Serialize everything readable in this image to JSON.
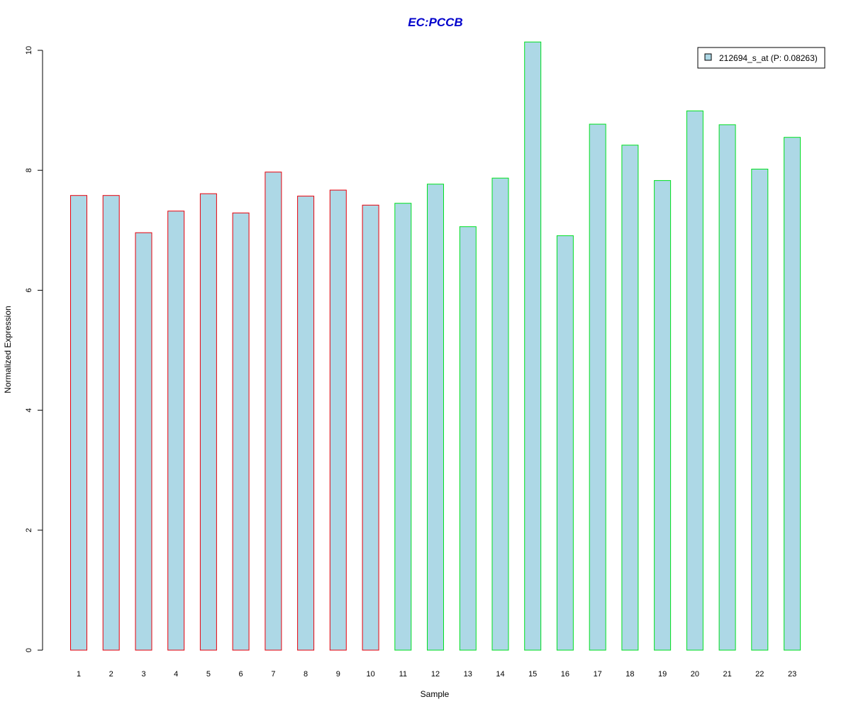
{
  "chart_data": {
    "type": "bar",
    "title": "EC:PCCB",
    "xlabel": "Sample",
    "ylabel": "Normalized Expression",
    "categories": [
      "1",
      "2",
      "3",
      "4",
      "5",
      "6",
      "7",
      "8",
      "9",
      "10",
      "11",
      "12",
      "13",
      "14",
      "15",
      "16",
      "17",
      "18",
      "19",
      "20",
      "21",
      "22",
      "23"
    ],
    "series": [
      {
        "name": "212694_s_at (P: 0.08263)",
        "values": [
          7.58,
          7.58,
          6.96,
          7.32,
          7.61,
          7.29,
          7.97,
          7.57,
          7.67,
          7.42,
          7.45,
          7.77,
          7.06,
          7.87,
          10.14,
          6.91,
          8.77,
          8.42,
          7.83,
          8.99,
          8.76,
          8.02,
          8.55
        ]
      }
    ],
    "group_border_colors": [
      "#e8000b",
      "#e8000b",
      "#e8000b",
      "#e8000b",
      "#e8000b",
      "#e8000b",
      "#e8000b",
      "#e8000b",
      "#e8000b",
      "#e8000b",
      "#00e020",
      "#00e020",
      "#00e020",
      "#00e020",
      "#00e020",
      "#00e020",
      "#00e020",
      "#00e020",
      "#00e020",
      "#00e020",
      "#00e020",
      "#00e020",
      "#00e020"
    ],
    "bar_fill_color": "#add8e6",
    "title_color": "#0000cc",
    "ylim": [
      0,
      10
    ],
    "yticks": [
      0,
      2,
      4,
      6,
      8,
      10
    ],
    "grid": false,
    "legend_position": "top-right"
  }
}
